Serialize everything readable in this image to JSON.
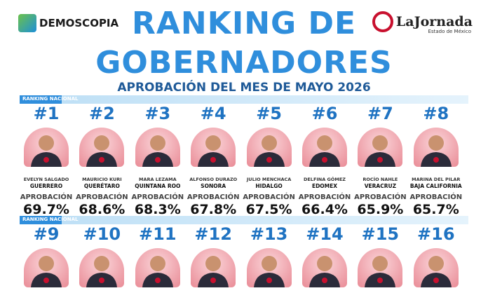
{
  "header": {
    "brand_left": "DEMOSCOPIA",
    "brand_right": "LaJornada",
    "brand_right_sub": "Estado de México",
    "title_line1": "RANKING DE",
    "title_line2": "GOBERNADORES",
    "subtitle": "APROBACIÓN DEL MES DE MAYO 2026"
  },
  "sections": [
    {
      "label": "RANKING NACIONAL",
      "governors": [
        {
          "rank": "#1",
          "name": "EVELYN SALGADO",
          "state": "GUERRERO",
          "approval_label": "APROBACIÓN",
          "approval": "69.7%"
        },
        {
          "rank": "#2",
          "name": "MAURICIO KURI",
          "state": "QUERÉTARO",
          "approval_label": "APROBACIÓN",
          "approval": "68.6%"
        },
        {
          "rank": "#3",
          "name": "MARA LEZAMA",
          "state": "QUINTANA ROO",
          "approval_label": "APROBACIÓN",
          "approval": "68.3%"
        },
        {
          "rank": "#4",
          "name": "ALFONSO DURAZO",
          "state": "SONORA",
          "approval_label": "APROBACIÓN",
          "approval": "67.8%"
        },
        {
          "rank": "#5",
          "name": "JULIO MENCHACA",
          "state": "HIDALGO",
          "approval_label": "APROBACIÓN",
          "approval": "67.5%"
        },
        {
          "rank": "#6",
          "name": "DELFINA GÓMEZ",
          "state": "EDOMEX",
          "approval_label": "APROBACIÓN",
          "approval": "66.4%"
        },
        {
          "rank": "#7",
          "name": "ROCÍO NAHLE",
          "state": "VERACRUZ",
          "approval_label": "APROBACIÓN",
          "approval": "65.9%"
        },
        {
          "rank": "#8",
          "name": "MARINA DEL PILAR",
          "state": "BAJA CALIFORNIA",
          "approval_label": "APROBACIÓN",
          "approval": "65.7%"
        }
      ]
    },
    {
      "label": "RANKING NACIONAL",
      "governors": [
        {
          "rank": "#9"
        },
        {
          "rank": "#10"
        },
        {
          "rank": "#11"
        },
        {
          "rank": "#12"
        },
        {
          "rank": "#13"
        },
        {
          "rank": "#14"
        },
        {
          "rank": "#15"
        },
        {
          "rank": "#16"
        }
      ]
    }
  ]
}
